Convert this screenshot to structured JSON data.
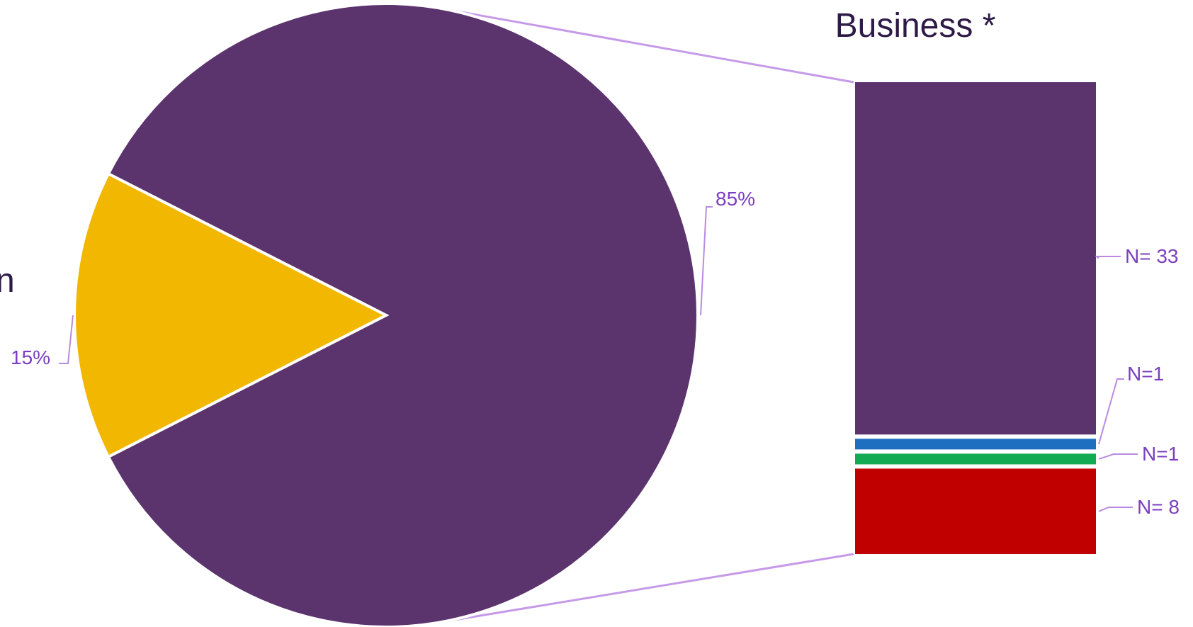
{
  "chart_data": {
    "type": "bar-of-pie",
    "pie": {
      "slices": [
        {
          "value": 85,
          "label": "85%",
          "color": "#5B336D"
        },
        {
          "value": 15,
          "label": "15%",
          "color": "#F2B700"
        }
      ]
    },
    "breakdown": {
      "title": "Business *",
      "segments": [
        {
          "value": 33,
          "label": "N= 33",
          "color": "#5B336D"
        },
        {
          "value": 1,
          "label": "N=1",
          "color": "#1F6FC1"
        },
        {
          "value": 1,
          "label": "N=1",
          "color": "#12AA52"
        },
        {
          "value": 8,
          "label": "N= 8",
          "color": "#C00000"
        }
      ]
    },
    "clipped_text": "n"
  }
}
